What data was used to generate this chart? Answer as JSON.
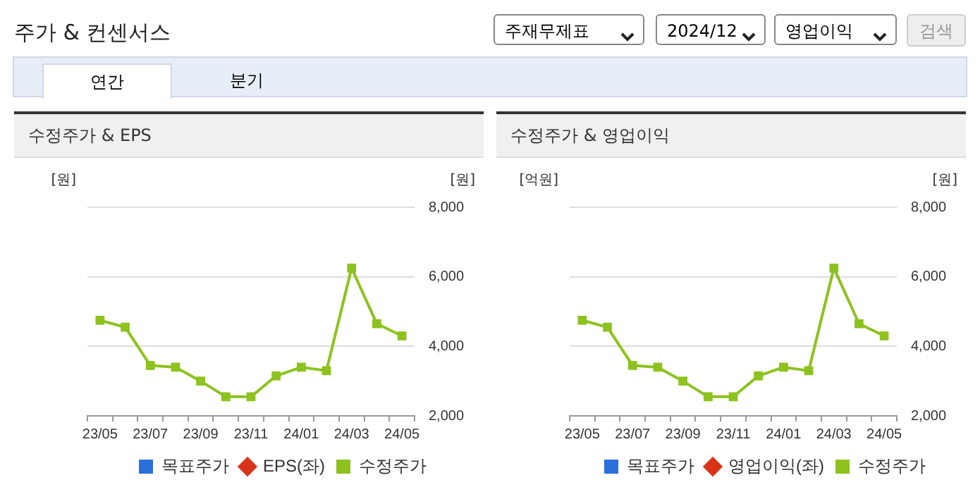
{
  "chart_data": [
    {
      "type": "other",
      "title": "주가 & 컨센서스",
      "annotations": [
        "주재무제표",
        "2024/12",
        "영업이익",
        "검색",
        "연간",
        "분기"
      ]
    },
    {
      "type": "line",
      "title": "수정주가 & EPS",
      "ylabel": "[원]",
      "y2label": "[원]",
      "categories": [
        "23/05",
        null,
        "23/07",
        null,
        "23/09",
        null,
        "23/11",
        null,
        "24/01",
        null,
        "24/03",
        null,
        "24/05"
      ],
      "series": [
        {
          "name": "목표주가",
          "color": "#2a6fdb",
          "marker": "square",
          "values": [
            null,
            null,
            null,
            null,
            null,
            null,
            null,
            null,
            null,
            null,
            null,
            null,
            null
          ]
        },
        {
          "name": "EPS(좌)",
          "color": "#d9341a",
          "marker": "diamond",
          "values": [
            null,
            null,
            null,
            null,
            null,
            null,
            null,
            null,
            null,
            null,
            null,
            null,
            null
          ]
        },
        {
          "name": "수정주가",
          "color": "#8dc21f",
          "marker": "square",
          "axis": "y2",
          "values": [
            4750,
            4550,
            3450,
            3400,
            3000,
            2550,
            2550,
            3150,
            3400,
            3300,
            6250,
            4650,
            4300
          ]
        }
      ],
      "y2lim": [
        2000,
        8000
      ],
      "y2ticks": [
        {
          "value": 2000,
          "label": "2,000"
        },
        {
          "value": 4000,
          "label": "4,000"
        },
        {
          "value": 6000,
          "label": "6,000"
        },
        {
          "value": 8000,
          "label": "8,000"
        }
      ],
      "grid": "y",
      "legend": "bottom"
    },
    {
      "type": "line",
      "title": "수정주가 & 영업이익",
      "ylabel": "[억원]",
      "y2label": "[원]",
      "categories": [
        "23/05",
        null,
        "23/07",
        null,
        "23/09",
        null,
        "23/11",
        null,
        "24/01",
        null,
        "24/03",
        null,
        "24/05"
      ],
      "series": [
        {
          "name": "목표주가",
          "color": "#2a6fdb",
          "marker": "square",
          "values": [
            null,
            null,
            null,
            null,
            null,
            null,
            null,
            null,
            null,
            null,
            null,
            null,
            null
          ]
        },
        {
          "name": "영업이익(좌)",
          "color": "#d9341a",
          "marker": "diamond",
          "values": [
            null,
            null,
            null,
            null,
            null,
            null,
            null,
            null,
            null,
            null,
            null,
            null,
            null
          ]
        },
        {
          "name": "수정주가",
          "color": "#8dc21f",
          "marker": "square",
          "axis": "y2",
          "values": [
            4750,
            4550,
            3450,
            3400,
            3000,
            2550,
            2550,
            3150,
            3400,
            3300,
            6250,
            4650,
            4300
          ]
        }
      ],
      "y2lim": [
        2000,
        8000
      ],
      "y2ticks": [
        {
          "value": 2000,
          "label": "2,000"
        },
        {
          "value": 4000,
          "label": "4,000"
        },
        {
          "value": 6000,
          "label": "6,000"
        },
        {
          "value": 8000,
          "label": "8,000"
        }
      ],
      "grid": "y",
      "legend": "bottom"
    }
  ]
}
